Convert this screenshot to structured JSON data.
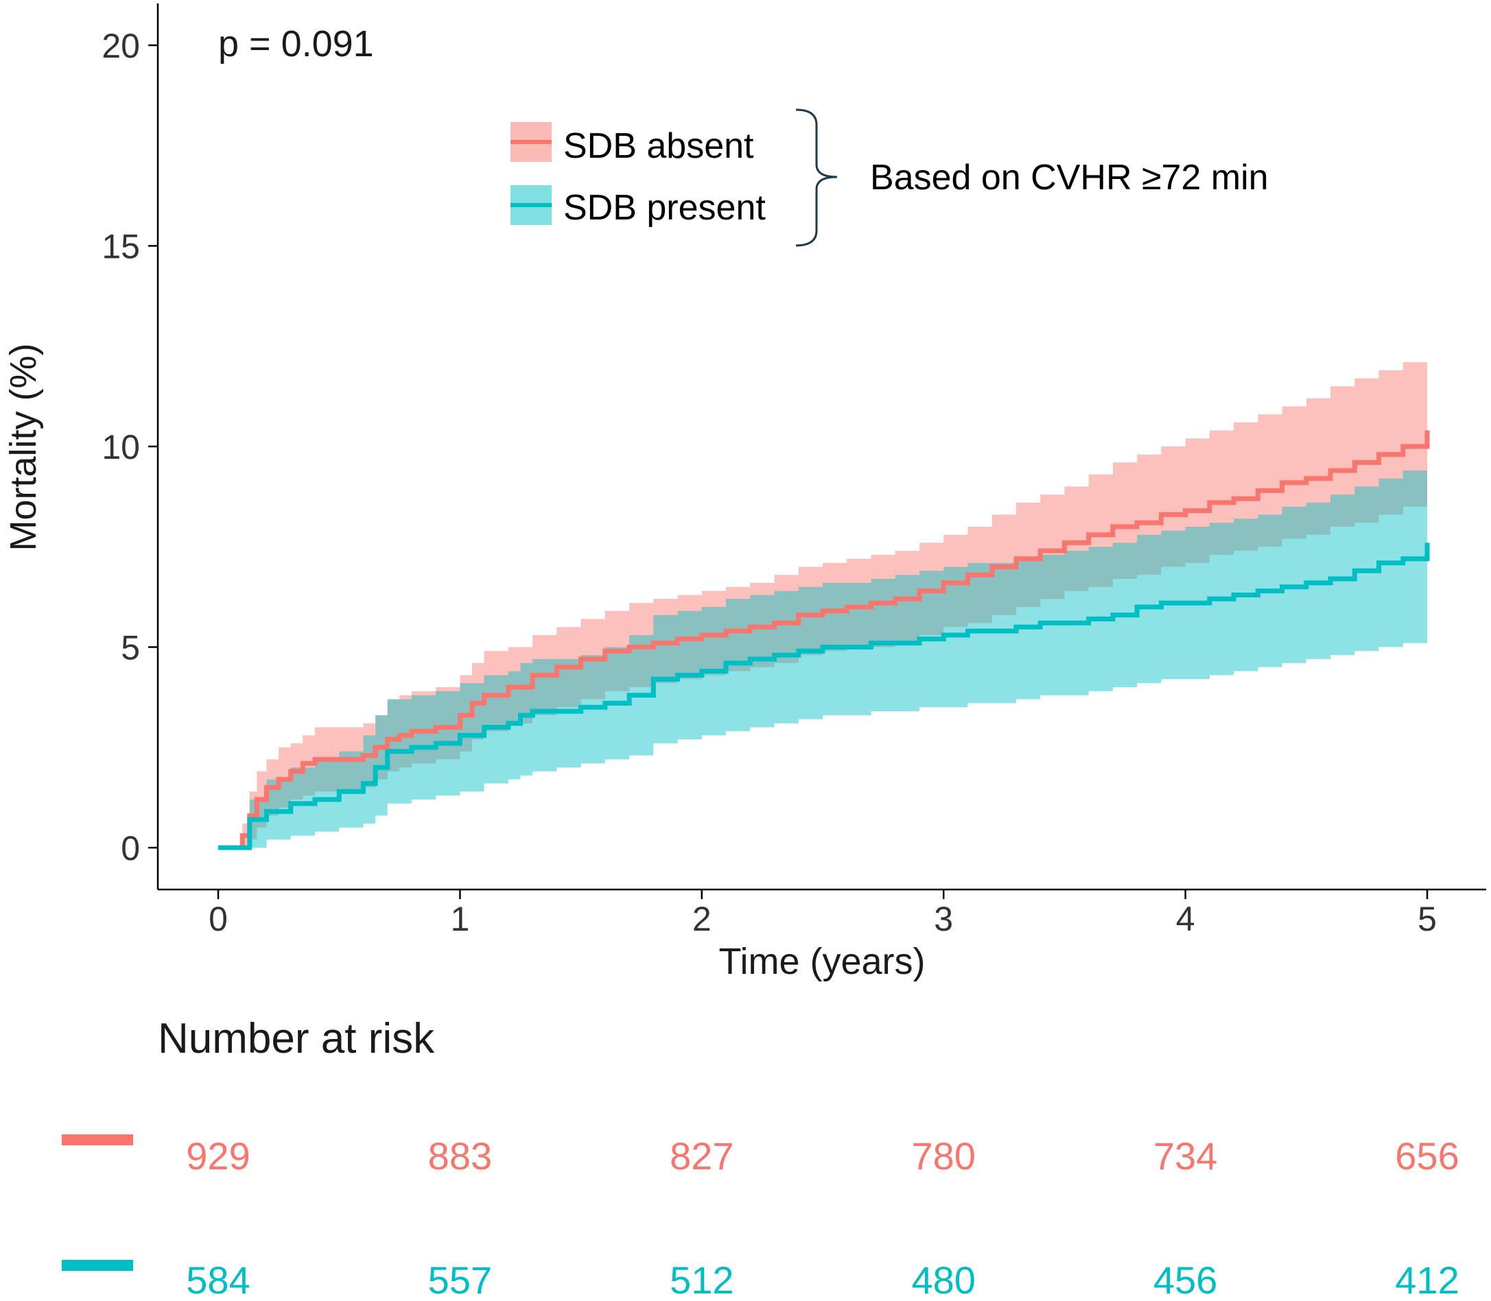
{
  "chart_data": {
    "type": "line",
    "subtype": "kaplan-meier cumulative mortality with 95% confidence bands",
    "annotation_p": "p = 0.091",
    "xlabel": "Time (years)",
    "ylabel": "Mortality (%)",
    "xlim": [
      0,
      5
    ],
    "ylim": [
      0,
      20
    ],
    "x_ticks": [
      0,
      1,
      2,
      3,
      4,
      5
    ],
    "y_ticks": [
      0,
      5,
      10,
      15,
      20
    ],
    "grid": false,
    "legend": {
      "placement": "top-center",
      "bracket_note": "Based on CVHR ≥72 min",
      "entries": [
        "SDB absent",
        "SDB present"
      ]
    },
    "series": [
      {
        "name": "SDB absent",
        "color": "#f8766d",
        "band_color": "#f8766d",
        "x": [
          0,
          0.1,
          0.13,
          0.16,
          0.2,
          0.25,
          0.3,
          0.35,
          0.4,
          0.5,
          0.6,
          0.65,
          0.7,
          0.75,
          0.8,
          0.9,
          1.0,
          1.05,
          1.1,
          1.2,
          1.3,
          1.4,
          1.5,
          1.6,
          1.7,
          1.8,
          1.9,
          2.0,
          2.1,
          2.2,
          2.3,
          2.4,
          2.5,
          2.6,
          2.7,
          2.8,
          2.9,
          3.0,
          3.1,
          3.2,
          3.3,
          3.4,
          3.5,
          3.6,
          3.7,
          3.8,
          3.9,
          4.0,
          4.1,
          4.2,
          4.3,
          4.4,
          4.5,
          4.6,
          4.7,
          4.8,
          4.9,
          5.0
        ],
        "y": [
          0,
          0.3,
          0.8,
          1.2,
          1.5,
          1.7,
          1.9,
          2.1,
          2.2,
          2.2,
          2.3,
          2.5,
          2.7,
          2.8,
          2.9,
          3.0,
          3.3,
          3.6,
          3.8,
          4.0,
          4.3,
          4.5,
          4.7,
          4.9,
          5.0,
          5.1,
          5.2,
          5.3,
          5.4,
          5.5,
          5.6,
          5.8,
          5.9,
          6.0,
          6.1,
          6.2,
          6.4,
          6.6,
          6.8,
          7.0,
          7.2,
          7.4,
          7.6,
          7.8,
          8.0,
          8.1,
          8.3,
          8.4,
          8.6,
          8.7,
          8.9,
          9.1,
          9.2,
          9.4,
          9.6,
          9.8,
          10.0,
          10.4
        ],
        "lower": [
          0,
          0,
          0.2,
          0.5,
          0.8,
          1.0,
          1.2,
          1.3,
          1.4,
          1.4,
          1.5,
          1.7,
          1.9,
          2.0,
          2.1,
          2.2,
          2.4,
          2.7,
          2.9,
          3.1,
          3.3,
          3.5,
          3.7,
          3.9,
          4.0,
          4.1,
          4.2,
          4.3,
          4.4,
          4.5,
          4.6,
          4.8,
          4.9,
          5.0,
          5.0,
          5.1,
          5.3,
          5.5,
          5.6,
          5.8,
          6.0,
          6.2,
          6.4,
          6.5,
          6.7,
          6.8,
          7.0,
          7.1,
          7.3,
          7.4,
          7.5,
          7.7,
          7.8,
          8.0,
          8.1,
          8.3,
          8.5,
          8.8
        ],
        "upper": [
          0,
          0.6,
          1.4,
          1.9,
          2.2,
          2.5,
          2.6,
          2.8,
          3.0,
          3.0,
          3.1,
          3.3,
          3.7,
          3.8,
          3.9,
          4.0,
          4.3,
          4.6,
          4.9,
          5.0,
          5.3,
          5.5,
          5.7,
          5.9,
          6.1,
          6.2,
          6.3,
          6.4,
          6.5,
          6.6,
          6.8,
          7.0,
          7.1,
          7.2,
          7.3,
          7.4,
          7.6,
          7.8,
          8.0,
          8.3,
          8.6,
          8.8,
          9.0,
          9.3,
          9.6,
          9.8,
          10.0,
          10.2,
          10.4,
          10.6,
          10.8,
          11.0,
          11.2,
          11.5,
          11.7,
          11.9,
          12.1,
          12.5
        ]
      },
      {
        "name": "SDB present",
        "color": "#00bfc4",
        "band_color": "#00bfc4",
        "x": [
          0,
          0.13,
          0.2,
          0.3,
          0.4,
          0.5,
          0.6,
          0.65,
          0.7,
          0.8,
          0.9,
          1.0,
          1.1,
          1.2,
          1.25,
          1.3,
          1.4,
          1.5,
          1.6,
          1.7,
          1.8,
          1.9,
          2.0,
          2.1,
          2.2,
          2.3,
          2.4,
          2.5,
          2.6,
          2.7,
          2.8,
          2.9,
          3.0,
          3.1,
          3.2,
          3.3,
          3.4,
          3.5,
          3.6,
          3.7,
          3.8,
          3.9,
          4.0,
          4.1,
          4.2,
          4.3,
          4.4,
          4.5,
          4.6,
          4.7,
          4.8,
          4.9,
          5.0
        ],
        "y": [
          0,
          0.7,
          0.9,
          1.1,
          1.2,
          1.4,
          1.6,
          2.0,
          2.4,
          2.5,
          2.6,
          2.8,
          3.0,
          3.1,
          3.3,
          3.4,
          3.4,
          3.5,
          3.6,
          3.8,
          4.2,
          4.3,
          4.4,
          4.6,
          4.7,
          4.8,
          4.9,
          5.0,
          5.0,
          5.1,
          5.1,
          5.2,
          5.3,
          5.4,
          5.4,
          5.5,
          5.6,
          5.6,
          5.7,
          5.8,
          6.0,
          6.1,
          6.1,
          6.2,
          6.3,
          6.4,
          6.5,
          6.6,
          6.7,
          6.9,
          7.1,
          7.2,
          7.6
        ],
        "lower": [
          0,
          0,
          0.2,
          0.3,
          0.4,
          0.5,
          0.6,
          0.8,
          1.1,
          1.2,
          1.3,
          1.4,
          1.6,
          1.7,
          1.8,
          1.9,
          2.0,
          2.1,
          2.2,
          2.3,
          2.6,
          2.7,
          2.8,
          2.9,
          3.0,
          3.1,
          3.2,
          3.3,
          3.3,
          3.4,
          3.4,
          3.5,
          3.5,
          3.6,
          3.6,
          3.7,
          3.8,
          3.8,
          3.9,
          4.0,
          4.1,
          4.2,
          4.2,
          4.3,
          4.4,
          4.5,
          4.6,
          4.7,
          4.8,
          4.9,
          5.0,
          5.1,
          5.3
        ],
        "upper": [
          0,
          1.2,
          1.7,
          2.0,
          2.2,
          2.4,
          2.8,
          3.3,
          3.7,
          3.8,
          3.9,
          4.1,
          4.3,
          4.4,
          4.6,
          4.7,
          4.7,
          4.8,
          5.0,
          5.3,
          5.8,
          5.9,
          6.0,
          6.2,
          6.3,
          6.4,
          6.5,
          6.6,
          6.6,
          6.7,
          6.8,
          6.9,
          7.0,
          7.1,
          7.1,
          7.2,
          7.3,
          7.4,
          7.5,
          7.6,
          7.8,
          7.9,
          8.0,
          8.1,
          8.2,
          8.3,
          8.5,
          8.6,
          8.8,
          9.0,
          9.2,
          9.4,
          10.0
        ]
      }
    ],
    "risk_table": {
      "title": "Number at risk",
      "times": [
        0,
        1,
        2,
        3,
        4,
        5
      ],
      "rows": [
        {
          "series": "SDB absent",
          "color": "#f8766d",
          "values": [
            "929",
            "883",
            "827",
            "780",
            "734",
            "656"
          ]
        },
        {
          "series": "SDB present",
          "color": "#00bfc4",
          "values": [
            "584",
            "557",
            "512",
            "480",
            "456",
            "412"
          ]
        }
      ]
    }
  }
}
